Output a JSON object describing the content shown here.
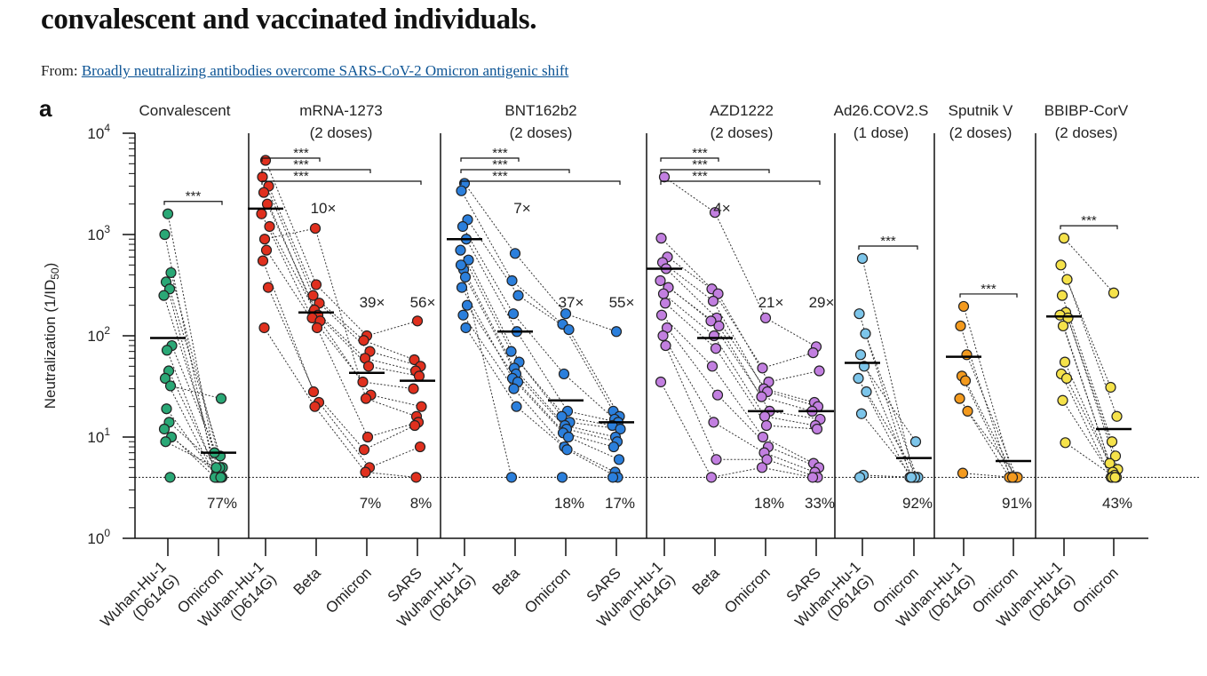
{
  "header": {
    "title": "convalescent and vaccinated individuals.",
    "from_label": "From:",
    "from_link": "Broadly neutralizing antibodies overcome SARS-CoV-2 Omicron antigenic shift"
  },
  "chart_data": {
    "type": "scatter",
    "panel_label": "a",
    "ylabel_main": "Neutralization (1/ID",
    "ylabel_sub": "50",
    "ylabel_close": ")",
    "yscale": "log",
    "ylim": [
      1,
      10000
    ],
    "yticks": [
      {
        "base": "10",
        "exp": "0",
        "value": 1
      },
      {
        "base": "10",
        "exp": "1",
        "value": 10
      },
      {
        "base": "10",
        "exp": "2",
        "value": 100
      },
      {
        "base": "10",
        "exp": "3",
        "value": 1000
      },
      {
        "base": "10",
        "exp": "4",
        "value": 10000
      }
    ],
    "limit_of_detection": 4,
    "groups": [
      {
        "name": "Convalescent",
        "subtitle": "",
        "color": "#2aa876",
        "categories": [
          "Wuhan-Hu-1\n(D614G)",
          "Omicron"
        ],
        "medians": [
          95,
          7
        ],
        "fold": [],
        "percents": [
          "",
          "77%"
        ],
        "brackets": [
          {
            "from": 0,
            "to": 1,
            "label": "***"
          }
        ],
        "pairs": [
          [
            1600,
            4
          ],
          [
            1000,
            4
          ],
          [
            420,
            5
          ],
          [
            340,
            4.5
          ],
          [
            290,
            6.5
          ],
          [
            250,
            7
          ],
          [
            80,
            5
          ],
          [
            72,
            4
          ],
          [
            45,
            4
          ],
          [
            38,
            4
          ],
          [
            32,
            24
          ],
          [
            19,
            4
          ],
          [
            14,
            5
          ],
          [
            12,
            4
          ],
          [
            10,
            4
          ],
          [
            9,
            5
          ],
          [
            4,
            4
          ]
        ]
      },
      {
        "name": "mRNA-1273",
        "subtitle": "(2 doses)",
        "color": "#e0301e",
        "categories": [
          "Wuhan-Hu-1\n(D614G)",
          "Beta",
          "Omicron",
          "SARS"
        ],
        "medians": [
          1800,
          170,
          43,
          36
        ],
        "fold": [
          "",
          "10×",
          "39×",
          "56×"
        ],
        "percents": [
          "",
          "",
          "7%",
          "8%"
        ],
        "brackets": [
          {
            "from": 0,
            "to": 1,
            "label": "***"
          },
          {
            "from": 0,
            "to": 2,
            "label": "***"
          },
          {
            "from": 0,
            "to": 3,
            "label": "***"
          }
        ],
        "quads": [
          [
            5400,
            320,
            100,
            140
          ],
          [
            3700,
            250,
            90,
            58
          ],
          [
            3000,
            210,
            70,
            50
          ],
          [
            2600,
            180,
            60,
            45
          ],
          [
            2000,
            160,
            50,
            40
          ],
          [
            1600,
            150,
            35,
            30
          ],
          [
            1200,
            140,
            26,
            20
          ],
          [
            900,
            1150,
            24,
            16
          ],
          [
            700,
            120,
            10,
            14
          ],
          [
            550,
            28,
            7.5,
            13
          ],
          [
            300,
            22,
            5,
            8
          ],
          [
            120,
            20,
            4.5,
            4
          ]
        ]
      },
      {
        "name": "BNT162b2",
        "subtitle": "(2 doses)",
        "color": "#2b7fdc",
        "categories": [
          "Wuhan-Hu-1\n(D614G)",
          "Beta",
          "Omicron",
          "SARS"
        ],
        "medians": [
          900,
          110,
          23,
          14
        ],
        "fold": [
          "",
          "7×",
          "37×",
          "55×"
        ],
        "percents": [
          "",
          "",
          "18%",
          "17%"
        ],
        "brackets": [
          {
            "from": 0,
            "to": 1,
            "label": "***"
          },
          {
            "from": 0,
            "to": 2,
            "label": "***"
          },
          {
            "from": 0,
            "to": 3,
            "label": "***"
          }
        ],
        "quads": [
          [
            3200,
            650,
            165,
            110
          ],
          [
            2700,
            350,
            130,
            18
          ],
          [
            1400,
            250,
            115,
            16
          ],
          [
            1200,
            165,
            42,
            15
          ],
          [
            900,
            110,
            18,
            14
          ],
          [
            700,
            70,
            16,
            13
          ],
          [
            560,
            55,
            14,
            12
          ],
          [
            450,
            48,
            13,
            10
          ],
          [
            380,
            42,
            12,
            9
          ],
          [
            300,
            38,
            11,
            8
          ],
          [
            200,
            35,
            10,
            6
          ],
          [
            160,
            30,
            8,
            4.5
          ],
          [
            120,
            20,
            7.5,
            4
          ],
          [
            500,
            4,
            4,
            4
          ]
        ]
      },
      {
        "name": "AZD1222",
        "subtitle": "(2 doses)",
        "color": "#c27fe0",
        "categories": [
          "Wuhan-Hu-1\n(D614G)",
          "Beta",
          "Omicron",
          "SARS"
        ],
        "medians": [
          460,
          95,
          18,
          18
        ],
        "fold": [
          "",
          "4×",
          "21×",
          "29×"
        ],
        "percents": [
          "",
          "",
          "18%",
          "33%"
        ],
        "brackets": [
          {
            "from": 0,
            "to": 1,
            "label": "***"
          },
          {
            "from": 0,
            "to": 2,
            "label": "***"
          },
          {
            "from": 0,
            "to": 3,
            "label": "***"
          }
        ],
        "quads": [
          [
            3700,
            1650,
            150,
            78
          ],
          [
            920,
            290,
            48,
            68
          ],
          [
            600,
            260,
            35,
            45
          ],
          [
            530,
            220,
            30,
            22
          ],
          [
            460,
            150,
            28,
            20
          ],
          [
            350,
            140,
            25,
            18
          ],
          [
            300,
            125,
            18,
            15
          ],
          [
            260,
            100,
            16,
            13
          ],
          [
            210,
            75,
            13,
            12
          ],
          [
            160,
            50,
            10,
            5.5
          ],
          [
            120,
            26,
            8,
            5
          ],
          [
            100,
            14,
            7,
            4.5
          ],
          [
            80,
            6,
            6,
            4
          ],
          [
            35,
            4,
            5,
            4
          ]
        ]
      },
      {
        "name": "Ad26.COV2.S",
        "subtitle": "(1 dose)",
        "color": "#7cc5ea",
        "categories": [
          "Wuhan-Hu-1\n(D614G)",
          "Omicron"
        ],
        "medians": [
          54,
          6.2
        ],
        "fold": [],
        "percents": [
          "",
          "92%"
        ],
        "brackets": [
          {
            "from": 0,
            "to": 1,
            "label": "***"
          }
        ],
        "pairs": [
          [
            580,
            4
          ],
          [
            165,
            4
          ],
          [
            105,
            4
          ],
          [
            65,
            4
          ],
          [
            50,
            9
          ],
          [
            38,
            4
          ],
          [
            28,
            4
          ],
          [
            17,
            4
          ],
          [
            4.2,
            4
          ],
          [
            4,
            4
          ]
        ]
      },
      {
        "name": "Sputnik V",
        "subtitle": "(2 doses)",
        "color": "#f39a1e",
        "categories": [
          "Wuhan-Hu-1\n(D614G)",
          "Omicron"
        ],
        "medians": [
          62,
          5.8
        ],
        "fold": [],
        "percents": [
          "",
          "91%"
        ],
        "brackets": [
          {
            "from": 0,
            "to": 1,
            "label": "***"
          }
        ],
        "pairs": [
          [
            195,
            4
          ],
          [
            125,
            4
          ],
          [
            65,
            4
          ],
          [
            40,
            4
          ],
          [
            36,
            4
          ],
          [
            24,
            4
          ],
          [
            18,
            4
          ],
          [
            4.4,
            4
          ]
        ]
      },
      {
        "name": "BBIBP-CorV",
        "subtitle": "(2 doses)",
        "color": "#f5e24a",
        "categories": [
          "Wuhan-Hu-1\n(D614G)",
          "Omicron"
        ],
        "medians": [
          155,
          12
        ],
        "fold": [],
        "percents": [
          "",
          "43%"
        ],
        "brackets": [
          {
            "from": 0,
            "to": 1,
            "label": "***"
          }
        ],
        "pairs": [
          [
            920,
            265
          ],
          [
            500,
            31
          ],
          [
            360,
            16
          ],
          [
            250,
            9
          ],
          [
            170,
            6.5
          ],
          [
            160,
            5.5
          ],
          [
            150,
            4.8
          ],
          [
            125,
            4.5
          ],
          [
            55,
            4.2
          ],
          [
            42,
            4
          ],
          [
            38,
            4
          ],
          [
            23,
            4
          ],
          [
            8.8,
            4
          ]
        ]
      }
    ]
  }
}
